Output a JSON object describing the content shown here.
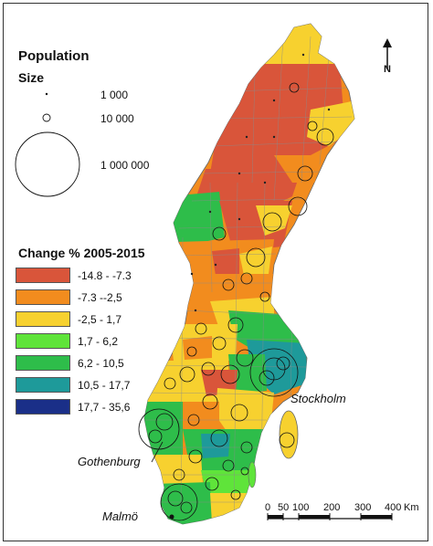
{
  "legend": {
    "population_title": "Population",
    "size_title": "Size",
    "sizes": [
      {
        "label": "1 000",
        "value": 1000
      },
      {
        "label": "10 000",
        "value": 10000
      },
      {
        "label": "1 000 000",
        "value": 1000000
      }
    ],
    "change_title": "Change % 2005-2015",
    "classes": [
      {
        "label": "-14.8 - -7.3",
        "color": "#d9553a"
      },
      {
        "label": "-7.3 --2,5",
        "color": "#f28c1e"
      },
      {
        "label": "-2,5 - 1,7",
        "color": "#f7d12f"
      },
      {
        "label": "1,7 - 6,2",
        "color": "#5fe43a"
      },
      {
        "label": "6,2 - 10,5",
        "color": "#2ebd4a"
      },
      {
        "label": "10,5 - 17,7",
        "color": "#1e9a9a"
      },
      {
        "label": "17,7 - 35,6",
        "color": "#1a2f88"
      }
    ]
  },
  "cities": {
    "stockholm": "Stockholm",
    "gothenburg": "Gothenburg",
    "malmo": "Malmö"
  },
  "scale_bar": {
    "ticks": [
      "0",
      "50",
      "100",
      "200",
      "300",
      "400"
    ],
    "unit": "Km"
  },
  "north_arrow": {
    "label": "N",
    "icon": "north-arrow-icon"
  }
}
